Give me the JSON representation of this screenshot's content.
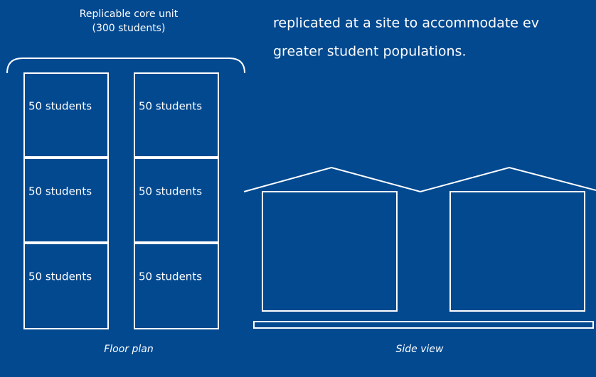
{
  "core_unit": {
    "title": "Replicable core unit",
    "subtitle": "(300 students)"
  },
  "text": {
    "line1": "replicated at a site to accommodate ev",
    "line2": "greater student populations."
  },
  "rooms": [
    "50 students",
    "50 students",
    "50 students",
    "50 students",
    "50 students",
    "50 students"
  ],
  "captions": {
    "floor_plan": "Floor plan",
    "side_view": "Side view"
  }
}
